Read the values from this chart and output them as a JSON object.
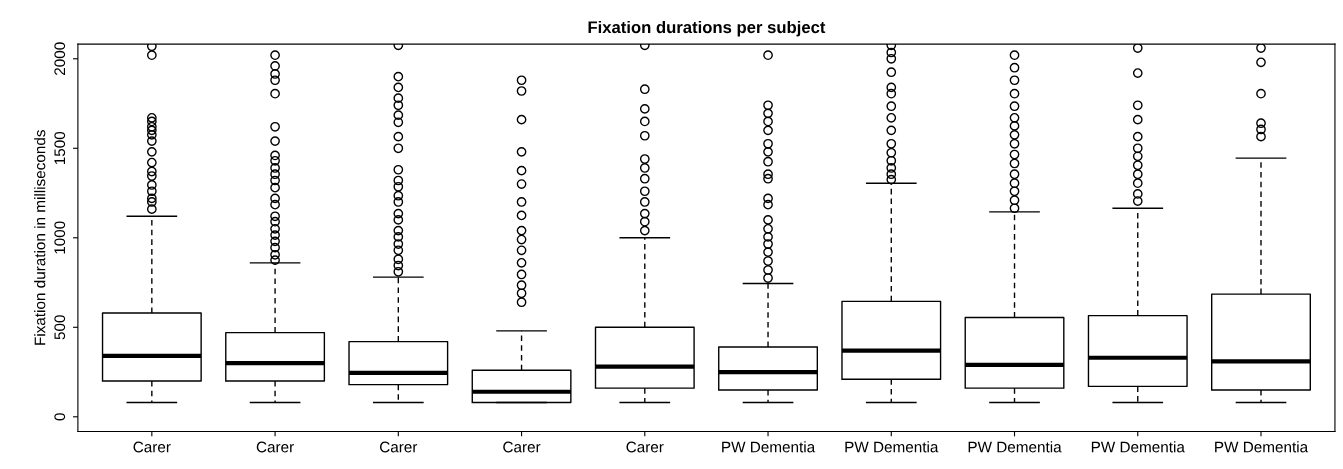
{
  "chart_data": {
    "type": "box",
    "title": "Fixation durations per subject",
    "ylabel": "Fixation duration in milliseconds",
    "categories": [
      "Carer",
      "Carer",
      "Carer",
      "Carer",
      "Carer",
      "PW Dementia",
      "PW Dementia",
      "PW Dementia",
      "PW Dementia",
      "PW Dementia"
    ],
    "boxes": [
      {
        "low": 80,
        "q1": 200,
        "median": 340,
        "q3": 580,
        "high": 1120,
        "outliers": [
          2070,
          2020,
          1670,
          1650,
          1620,
          1600,
          1575,
          1540,
          1480,
          1420,
          1370,
          1345,
          1295,
          1260,
          1220,
          1200,
          1160
        ]
      },
      {
        "low": 80,
        "q1": 200,
        "median": 300,
        "q3": 470,
        "high": 860,
        "outliers": [
          2020,
          1960,
          1915,
          1880,
          1805,
          1620,
          1540,
          1460,
          1430,
          1390,
          1355,
          1320,
          1280,
          1220,
          1185,
          1120,
          1090,
          1050,
          1015,
          980,
          945,
          905,
          875
        ]
      },
      {
        "low": 80,
        "q1": 180,
        "median": 245,
        "q3": 420,
        "high": 780,
        "outliers": [
          2075,
          1900,
          1840,
          1780,
          1740,
          1685,
          1645,
          1565,
          1500,
          1380,
          1320,
          1285,
          1235,
          1200,
          1135,
          1100,
          1040,
          1005,
          965,
          930,
          880,
          845,
          810
        ]
      },
      {
        "low": 80,
        "q1": 80,
        "median": 140,
        "q3": 260,
        "high": 480,
        "outliers": [
          1880,
          1820,
          1660,
          1480,
          1375,
          1300,
          1200,
          1125,
          1040,
          990,
          930,
          860,
          795,
          735,
          690,
          640
        ]
      },
      {
        "low": 80,
        "q1": 160,
        "median": 280,
        "q3": 500,
        "high": 1000,
        "outliers": [
          2075,
          1830,
          1720,
          1650,
          1570,
          1440,
          1390,
          1330,
          1260,
          1200,
          1135,
          1090,
          1040
        ]
      },
      {
        "low": 80,
        "q1": 150,
        "median": 250,
        "q3": 390,
        "high": 745,
        "outliers": [
          2020,
          1740,
          1695,
          1650,
          1600,
          1525,
          1480,
          1425,
          1355,
          1330,
          1220,
          1185,
          1100,
          1050,
          1005,
          965,
          920,
          870,
          820,
          775
        ]
      },
      {
        "low": 80,
        "q1": 210,
        "median": 370,
        "q3": 645,
        "high": 1305,
        "outliers": [
          2075,
          2035,
          2000,
          1925,
          1840,
          1805,
          1735,
          1670,
          1600,
          1525,
          1475,
          1430,
          1390,
          1355,
          1325
        ]
      },
      {
        "low": 80,
        "q1": 160,
        "median": 290,
        "q3": 555,
        "high": 1145,
        "outliers": [
          2020,
          1950,
          1880,
          1805,
          1735,
          1670,
          1625,
          1575,
          1525,
          1465,
          1415,
          1355,
          1305,
          1260,
          1210,
          1165
        ]
      },
      {
        "low": 80,
        "q1": 170,
        "median": 330,
        "q3": 565,
        "high": 1165,
        "outliers": [
          2060,
          1920,
          1740,
          1660,
          1565,
          1500,
          1455,
          1405,
          1355,
          1305,
          1245,
          1205
        ]
      },
      {
        "low": 80,
        "q1": 150,
        "median": 310,
        "q3": 685,
        "high": 1445,
        "outliers": [
          2060,
          1980,
          1805,
          1640,
          1605,
          1565
        ]
      }
    ],
    "ylim": [
      -82,
      2082
    ],
    "yticks": [
      0,
      500,
      1000,
      1500,
      2000
    ],
    "grid": false
  }
}
